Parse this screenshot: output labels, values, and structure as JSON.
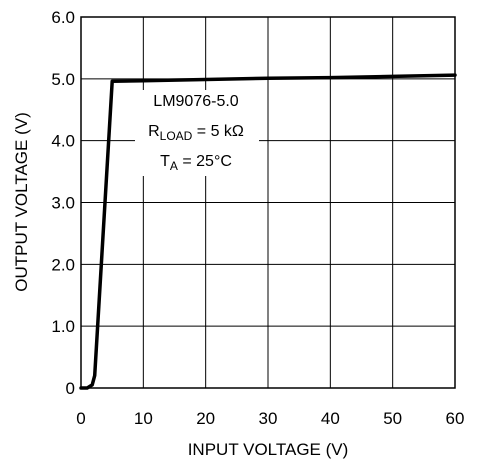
{
  "chart_data": {
    "type": "line",
    "xlabel": "INPUT VOLTAGE (V)",
    "ylabel": "OUTPUT VOLTAGE (V)",
    "xlim": [
      0,
      60
    ],
    "ylim": [
      0,
      6
    ],
    "x_ticks": [
      "0",
      "10",
      "20",
      "30",
      "40",
      "50",
      "60"
    ],
    "y_ticks": [
      "0",
      "1.0",
      "2.0",
      "3.0",
      "4.0",
      "5.0",
      "6.0"
    ],
    "grid": true,
    "annotation": {
      "line1": "LM9076-5.0",
      "r_main": "R",
      "r_sub": "LOAD",
      "r_rest": " = 5 kΩ",
      "t_main": "T",
      "t_sub": "A",
      "t_rest": " = 25°C"
    },
    "series": [
      {
        "x": [
          0,
          1,
          1.8,
          2.2,
          5,
          10,
          20,
          30,
          40,
          50,
          60
        ],
        "y": [
          0.0,
          0.0,
          0.05,
          0.2,
          4.96,
          4.97,
          4.99,
          5.01,
          5.02,
          5.04,
          5.06
        ]
      }
    ]
  }
}
